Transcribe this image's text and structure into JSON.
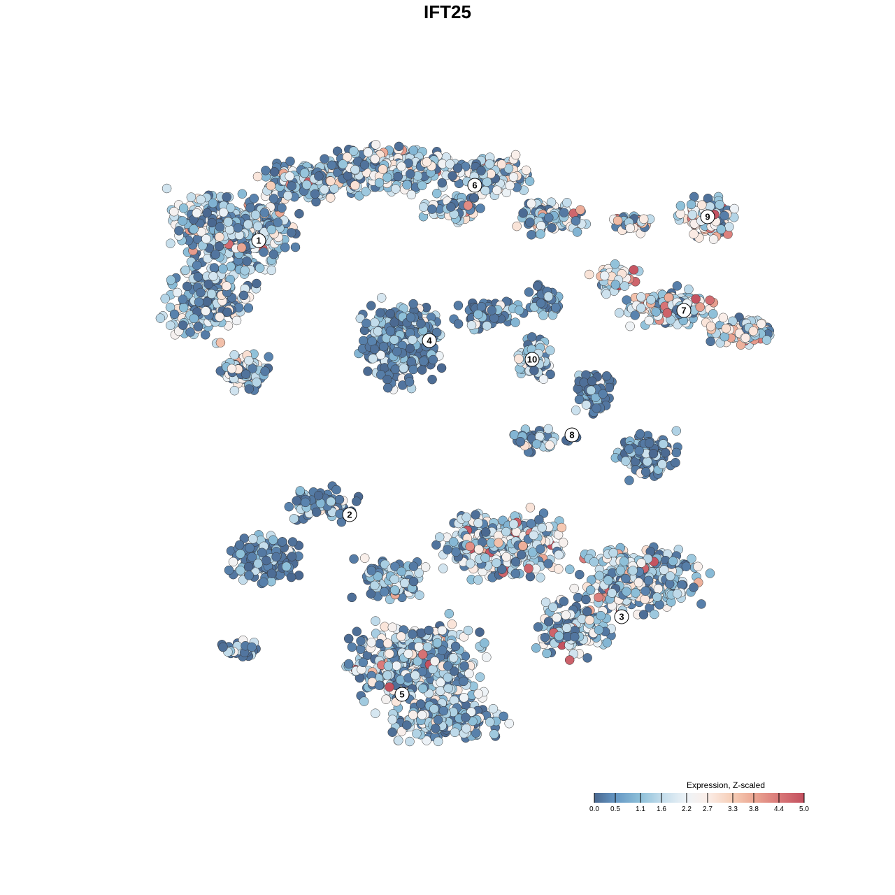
{
  "chart_data": {
    "type": "scatter",
    "title": "IFT25",
    "xlabel": "",
    "ylabel": "",
    "grid": false,
    "legend": {
      "title": "Expression, Z-scaled",
      "placement": "bottom-right",
      "ticks": [
        "0.0",
        "0.5",
        "1.1",
        "1.6",
        "2.2",
        "2.7",
        "3.3",
        "3.8",
        "4.4",
        "5.0"
      ],
      "range": [
        0,
        5
      ],
      "colors": [
        "#4a6890",
        "#6597c4",
        "#8ec0d9",
        "#c2dceb",
        "#eef3f7",
        "#fbeee8",
        "#f6cdb6",
        "#eba793",
        "#d97878",
        "#c3505f"
      ]
    },
    "clusters": [
      {
        "label": "1",
        "expression_level": "low-mid"
      },
      {
        "label": "2",
        "expression_level": "low"
      },
      {
        "label": "3",
        "expression_level": "mid"
      },
      {
        "label": "4",
        "expression_level": "low"
      },
      {
        "label": "5",
        "expression_level": "low-mid"
      },
      {
        "label": "6",
        "expression_level": "mid"
      },
      {
        "label": "7",
        "expression_level": "high"
      },
      {
        "label": "8",
        "expression_level": "low"
      },
      {
        "label": "9",
        "expression_level": "high"
      },
      {
        "label": "10",
        "expression_level": "low-mid"
      }
    ]
  }
}
